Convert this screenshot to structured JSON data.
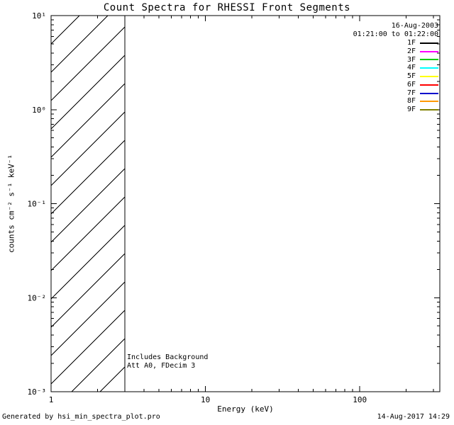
{
  "chart_data": {
    "type": "line",
    "title": "Count Spectra for RHESSI Front Segments",
    "xlabel": "Energy (keV)",
    "ylabel": "counts cm⁻² s⁻¹ keV⁻¹",
    "xscale": "log",
    "yscale": "log",
    "xlim": [
      1,
      330
    ],
    "ylim": [
      0.001,
      10
    ],
    "x_major_ticks": [
      1,
      10,
      100
    ],
    "x_tick_labels": [
      "1",
      "10",
      "100"
    ],
    "y_major_ticks": [
      10,
      1,
      0.1,
      0.01,
      0.001
    ],
    "y_tick_labels": [
      "10¹",
      "10⁰",
      "10⁻¹",
      "10⁻²",
      "10⁻³"
    ],
    "series": [],
    "grid": false,
    "hatched_region": {
      "x_start": 1,
      "x_end": 3,
      "style": "diagonal-hatch",
      "hatch_spacing_px": 40
    },
    "annotations": [
      "Includes Background",
      "Att A0, FDecim 3"
    ],
    "legend": {
      "position": "top-right",
      "date": "16-Aug-2003",
      "time_range": "01:21:00 to 01:22:00",
      "entries": [
        {
          "label": "1F",
          "color": "#000000"
        },
        {
          "label": "2F",
          "color": "#ff00ff"
        },
        {
          "label": "3F",
          "color": "#00cc00"
        },
        {
          "label": "4F",
          "color": "#00ffff"
        },
        {
          "label": "5F",
          "color": "#ffff00"
        },
        {
          "label": "6F",
          "color": "#ff0000"
        },
        {
          "label": "7F",
          "color": "#0000cc"
        },
        {
          "label": "8F",
          "color": "#ff9900"
        },
        {
          "label": "9F",
          "color": "#808000"
        }
      ]
    },
    "footer_left": "Generated by hsi_min_spectra_plot.pro",
    "footer_right": "14-Aug-2017 14:29"
  }
}
